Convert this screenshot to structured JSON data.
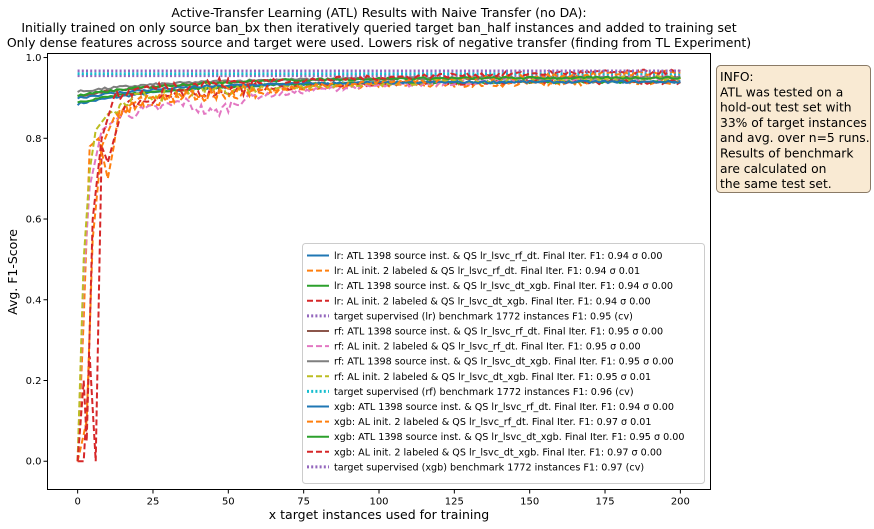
{
  "chart_data": {
    "type": "line",
    "title": [
      "Active-Transfer Learning (ATL) Results with Naive Transfer (no DA):",
      "Initially trained on only source ban_bx then iteratively queried target ban_half instances and added to training set",
      "Only dense features across source and target were used. Lowers risk of negative transfer (finding from TL Experiment)"
    ],
    "xlabel": "x target instances used for training",
    "ylabel": "Avg. F1-Score",
    "xlim": [
      -10,
      210
    ],
    "ylim": [
      -0.07,
      1.01
    ],
    "xticks": [
      0,
      25,
      50,
      75,
      100,
      125,
      150,
      175,
      200
    ],
    "yticks": [
      0.0,
      0.2,
      0.4,
      0.6,
      0.8,
      1.0
    ],
    "ytick_labels": [
      "0.0",
      "0.2",
      "0.4",
      "0.6",
      "0.8",
      "1.0"
    ],
    "grid": false,
    "legend_position": "lower right",
    "series": [
      {
        "name": "lr: ATL 1398 source inst. & QS lr_lsvc_rf_dt. Final Iter. F1: 0.94 σ 0.00",
        "color": "#1f77b4",
        "style": "solid",
        "kind": "atl",
        "start": 0.885,
        "final": 0.94
      },
      {
        "name": "lr: AL init. 2 labeled & QS lr_lsvc_rf_dt. Final Iter. F1: 0.94 σ 0.01",
        "color": "#ff7f0e",
        "style": "dashed",
        "kind": "al",
        "profile": [
          [
            0,
            0.0
          ],
          [
            2,
            0.35
          ],
          [
            4,
            0.78
          ],
          [
            7,
            0.8
          ],
          [
            10,
            0.7
          ],
          [
            14,
            0.86
          ],
          [
            20,
            0.89
          ],
          [
            30,
            0.9
          ],
          [
            50,
            0.91
          ],
          [
            75,
            0.92
          ],
          [
            100,
            0.93
          ],
          [
            150,
            0.935
          ],
          [
            200,
            0.94
          ]
        ]
      },
      {
        "name": "lr: ATL 1398 source inst. & QS lr_lsvc_dt_xgb. Final Iter. F1: 0.94 σ 0.00",
        "color": "#2ca02c",
        "style": "solid",
        "kind": "atl",
        "start": 0.89,
        "final": 0.94
      },
      {
        "name": "lr: AL init. 2 labeled & QS lr_lsvc_dt_xgb. Final Iter. F1: 0.94 σ 0.00",
        "color": "#d62728",
        "style": "dashed",
        "kind": "al",
        "profile": [
          [
            0,
            0.0
          ],
          [
            2,
            0.0
          ],
          [
            4,
            0.26
          ],
          [
            6,
            0.0
          ],
          [
            8,
            0.78
          ],
          [
            10,
            0.74
          ],
          [
            15,
            0.88
          ],
          [
            25,
            0.9
          ],
          [
            50,
            0.92
          ],
          [
            100,
            0.935
          ],
          [
            150,
            0.94
          ],
          [
            200,
            0.94
          ]
        ]
      },
      {
        "name": "target supervised (lr) benchmark 1772 instances F1: 0.95 (cv)",
        "color": "#9467bd",
        "style": "dotted",
        "kind": "bench",
        "value": 0.955
      },
      {
        "name": "rf: ATL 1398 source inst. & QS lr_lsvc_rf_dt. Final Iter. F1: 0.95 σ 0.00",
        "color": "#8c564b",
        "style": "solid",
        "kind": "atl",
        "start": 0.905,
        "final": 0.95
      },
      {
        "name": "rf: AL init. 2 labeled & QS lr_lsvc_rf_dt. Final Iter. F1: 0.95 σ 0.00",
        "color": "#e377c2",
        "style": "dashed",
        "kind": "al",
        "profile": [
          [
            0,
            0.0
          ],
          [
            2,
            0.45
          ],
          [
            4,
            0.68
          ],
          [
            8,
            0.82
          ],
          [
            15,
            0.86
          ],
          [
            25,
            0.87
          ],
          [
            35,
            0.89
          ],
          [
            45,
            0.86
          ],
          [
            55,
            0.9
          ],
          [
            80,
            0.92
          ],
          [
            100,
            0.93
          ],
          [
            150,
            0.945
          ],
          [
            200,
            0.95
          ]
        ]
      },
      {
        "name": "rf: ATL 1398 source inst. & QS lr_lsvc_dt_xgb. Final Iter. F1: 0.95 σ 0.00",
        "color": "#7f7f7f",
        "style": "solid",
        "kind": "atl",
        "start": 0.915,
        "final": 0.95
      },
      {
        "name": "rf: AL init. 2 labeled & QS lr_lsvc_dt_xgb. Final Iter. F1: 0.95 σ 0.01",
        "color": "#bcbd22",
        "style": "dashed",
        "kind": "al",
        "profile": [
          [
            0,
            0.0
          ],
          [
            2,
            0.5
          ],
          [
            4,
            0.72
          ],
          [
            6,
            0.82
          ],
          [
            10,
            0.86
          ],
          [
            20,
            0.9
          ],
          [
            40,
            0.92
          ],
          [
            80,
            0.93
          ],
          [
            120,
            0.94
          ],
          [
            160,
            0.945
          ],
          [
            200,
            0.95
          ]
        ]
      },
      {
        "name": "target supervised (rf) benchmark 1772 instances F1: 0.96 (cv)",
        "color": "#17becf",
        "style": "dotted",
        "kind": "bench",
        "value": 0.96
      },
      {
        "name": "xgb: ATL 1398 source inst. & QS lr_lsvc_rf_dt. Final Iter. F1: 0.94 σ 0.00",
        "color": "#1f77b4",
        "style": "solid",
        "kind": "atl",
        "start": 0.9,
        "final": 0.94
      },
      {
        "name": "xgb: AL init. 2 labeled & QS lr_lsvc_rf_dt. Final Iter. F1: 0.97 σ 0.01",
        "color": "#ff7f0e",
        "style": "dashed",
        "kind": "al",
        "profile": [
          [
            0,
            0.0
          ],
          [
            3,
            0.1
          ],
          [
            5,
            0.55
          ],
          [
            8,
            0.78
          ],
          [
            12,
            0.85
          ],
          [
            20,
            0.89
          ],
          [
            40,
            0.91
          ],
          [
            80,
            0.93
          ],
          [
            120,
            0.945
          ],
          [
            160,
            0.955
          ],
          [
            200,
            0.965
          ]
        ]
      },
      {
        "name": "xgb: ATL 1398 source inst. & QS lr_lsvc_dt_xgb. Final Iter. F1: 0.95 σ 0.00",
        "color": "#2ca02c",
        "style": "solid",
        "kind": "atl",
        "start": 0.905,
        "final": 0.95
      },
      {
        "name": "xgb: AL init. 2 labeled & QS lr_lsvc_dt_xgb. Final Iter. F1: 0.97 σ 0.00",
        "color": "#d62728",
        "style": "dashed",
        "kind": "al",
        "profile": [
          [
            0,
            0.0
          ],
          [
            2,
            0.2
          ],
          [
            3,
            0.05
          ],
          [
            5,
            0.6
          ],
          [
            8,
            0.8
          ],
          [
            12,
            0.9
          ],
          [
            20,
            0.92
          ],
          [
            40,
            0.935
          ],
          [
            80,
            0.945
          ],
          [
            120,
            0.955
          ],
          [
            160,
            0.962
          ],
          [
            200,
            0.965
          ]
        ]
      },
      {
        "name": "target supervised (xgb) benchmark 1772 instances F1: 0.97 (cv)",
        "color": "#9467bd",
        "style": "dotted",
        "kind": "bench",
        "value": 0.967
      }
    ]
  },
  "info_box": {
    "lines": [
      "INFO:",
      "ATL was tested on a",
      "hold-out test set with",
      "33% of target instances",
      "and avg. over n=5 runs.",
      "Results of benchmark",
      "are calculated on",
      "the same test set."
    ],
    "background": "#f9ead3",
    "border": "#8a7a66"
  }
}
